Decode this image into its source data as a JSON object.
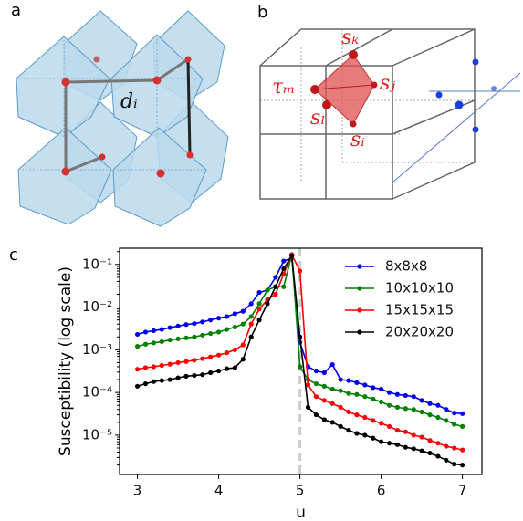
{
  "panel_labels": [
    "a",
    "b",
    "c"
  ],
  "diagram_a": {
    "bond_label": "dᵢ"
  },
  "diagram_b": {
    "labels": [
      "sₖ",
      "sⱼ",
      "τₘ",
      "sₗ",
      "sᵢ"
    ]
  },
  "chart_data": {
    "type": "line",
    "xlabel": "u",
    "ylabel": "Susceptibility (log scale)",
    "log_y": true,
    "xlim": [
      2.78,
      7.24
    ],
    "ylim": [
      1.2e-06,
      0.24
    ],
    "xticks": [
      3,
      4,
      5,
      6,
      7
    ],
    "yticks": [
      {
        "value": 1e-05,
        "label": "10⁻⁵"
      },
      {
        "value": 0.0001,
        "label": "10⁻⁴"
      },
      {
        "value": 0.001,
        "label": "10⁻³"
      },
      {
        "value": 0.01,
        "label": "10⁻²"
      },
      {
        "value": 0.1,
        "label": "10⁻¹"
      }
    ],
    "reference_line_x": 5,
    "legend_position": "upper right",
    "x": [
      3.0,
      3.1,
      3.2,
      3.3,
      3.4,
      3.5,
      3.6,
      3.7,
      3.8,
      3.9,
      4.0,
      4.1,
      4.2,
      4.3,
      4.4,
      4.5,
      4.6,
      4.7,
      4.8,
      4.9,
      5.0,
      5.1,
      5.2,
      5.3,
      5.4,
      5.5,
      5.6,
      5.7,
      5.8,
      5.9,
      6.0,
      6.1,
      6.2,
      6.3,
      6.4,
      6.5,
      6.6,
      6.7,
      6.8,
      6.9,
      7.0
    ],
    "series": [
      {
        "name": "8x8x8",
        "color": "#0000ee",
        "values": [
          0.0023,
          0.0026,
          0.0028,
          0.003,
          0.0033,
          0.0036,
          0.0039,
          0.0041,
          0.0045,
          0.005,
          0.0055,
          0.006,
          0.007,
          0.008,
          0.012,
          0.022,
          0.025,
          0.05,
          0.12,
          0.14,
          0.0015,
          0.0004,
          0.00032,
          0.00029,
          0.00045,
          0.0002,
          0.00019,
          0.00017,
          0.00015,
          0.00013,
          0.00012,
          0.0001,
          9e-05,
          8.5e-05,
          8e-05,
          6.5e-05,
          5.5e-05,
          5e-05,
          4e-05,
          3.3e-05,
          3.2e-05
        ]
      },
      {
        "name": "10x10x10",
        "color": "#008000",
        "values": [
          0.0012,
          0.00135,
          0.00145,
          0.00155,
          0.0017,
          0.0018,
          0.0019,
          0.002,
          0.0022,
          0.0024,
          0.0026,
          0.003,
          0.0034,
          0.004,
          0.006,
          0.012,
          0.025,
          0.03,
          0.03,
          0.17,
          0.0004,
          0.0002,
          0.00016,
          0.00014,
          0.00012,
          0.00011,
          9.5e-05,
          9e-05,
          8e-05,
          7e-05,
          6e-05,
          5e-05,
          4.5e-05,
          4.2e-05,
          4e-05,
          3.5e-05,
          3e-05,
          2.6e-05,
          2.2e-05,
          1.8e-05,
          1.6e-05
        ]
      },
      {
        "name": "15x15x15",
        "color": "#ff0000",
        "values": [
          0.00035,
          0.00038,
          0.0004,
          0.00043,
          0.00046,
          0.0005,
          0.00053,
          0.00057,
          0.00062,
          0.00068,
          0.00075,
          0.00085,
          0.001,
          0.0013,
          0.004,
          0.009,
          0.015,
          0.02,
          0.06,
          0.17,
          0.07,
          0.00015,
          8e-05,
          6.5e-05,
          5.5e-05,
          4.5e-05,
          3.5e-05,
          3e-05,
          2.6e-05,
          2.2e-05,
          1.9e-05,
          1.6e-05,
          1.3e-05,
          1.2e-05,
          1e-05,
          9e-06,
          7.5e-06,
          6.5e-06,
          5.5e-06,
          5e-06,
          4.5e-06
        ]
      },
      {
        "name": "20x20x20",
        "color": "#000000",
        "values": [
          0.00014,
          0.00016,
          0.00018,
          0.00019,
          0.0002,
          0.00022,
          0.00024,
          0.00025,
          0.00026,
          0.00029,
          0.00032,
          0.00036,
          0.00038,
          0.0006,
          0.002,
          0.005,
          0.012,
          0.03,
          0.08,
          0.16,
          0.002,
          4.5e-05,
          3e-05,
          2.3e-05,
          2e-05,
          1.6e-05,
          1.3e-05,
          1.1e-05,
          1e-05,
          8.5e-06,
          7e-06,
          6.5e-06,
          6e-06,
          5.2e-06,
          4.8e-06,
          4.3e-06,
          3.8e-06,
          3.2e-06,
          2.6e-06,
          2.1e-06,
          2e-06
        ]
      }
    ]
  }
}
